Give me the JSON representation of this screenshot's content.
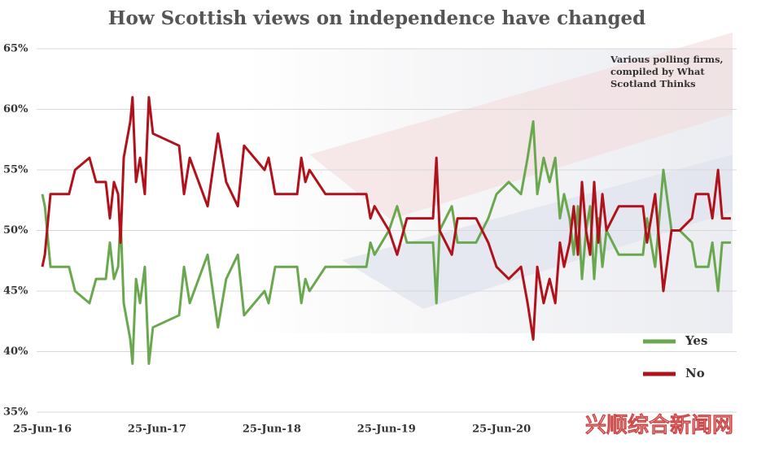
{
  "chart_data": {
    "type": "line",
    "title": "How Scottish views on independence have changed",
    "annotation": "Various polling firms, compiled by What Scotland Thinks",
    "watermark": "兴顺综合新闻网",
    "x": [
      "2016-06-25",
      "2016-07-03",
      "2016-07-21",
      "2016-09-18",
      "2016-10-07",
      "2016-11-22",
      "2016-12-13",
      "2017-01-13",
      "2017-01-26",
      "2017-02-08",
      "2017-02-21",
      "2017-03-01",
      "2017-03-11",
      "2017-04-01",
      "2017-04-08",
      "2017-04-19",
      "2017-05-02",
      "2017-05-17",
      "2017-05-30",
      "2017-06-12",
      "2017-09-03",
      "2017-09-19",
      "2017-10-07",
      "2017-12-03",
      "2018-01-05",
      "2018-01-31",
      "2018-03-09",
      "2018-03-29",
      "2018-06-02",
      "2018-06-15",
      "2018-07-06",
      "2018-09-14",
      "2018-09-27",
      "2018-10-10",
      "2018-10-23",
      "2018-12-13",
      "2019-04-22",
      "2019-05-05",
      "2019-05-18",
      "2019-07-03",
      "2019-07-29",
      "2019-08-29",
      "2019-11-20",
      "2019-12-01",
      "2019-12-11",
      "2020-01-19",
      "2020-02-06",
      "2020-04-05",
      "2020-05-14",
      "2020-06-09",
      "2020-07-18",
      "2020-08-26",
      "2020-09-16",
      "2020-10-04",
      "2020-10-17",
      "2020-11-06",
      "2020-11-25",
      "2020-12-13",
      "2020-12-28",
      "2021-01-10",
      "2021-01-28",
      "2021-02-10",
      "2021-02-23",
      "2021-03-08",
      "2021-03-21",
      "2021-04-03",
      "2021-04-16",
      "2021-04-29",
      "2021-05-12",
      "2021-05-25",
      "2021-07-03",
      "2021-09-18",
      "2021-10-01",
      "2021-10-27",
      "2021-11-22",
      "2021-12-18",
      "2022-01-13",
      "2022-02-21",
      "2022-03-06",
      "2022-04-14",
      "2022-04-27",
      "2022-05-15",
      "2022-05-28",
      "2022-06-25"
    ],
    "series": [
      {
        "name": "Yes",
        "color": "#6aa84f",
        "values": [
          53,
          52,
          47,
          47,
          45,
          44,
          46,
          46,
          49,
          46,
          47,
          51,
          44,
          41,
          39,
          46,
          44,
          47,
          39,
          42,
          43,
          47,
          44,
          48,
          42,
          46,
          48,
          43,
          45,
          44,
          47,
          47,
          44,
          46,
          45,
          47,
          47,
          49,
          48,
          50,
          52,
          49,
          49,
          44,
          50,
          52,
          49,
          49,
          51,
          53,
          54,
          53,
          56,
          59,
          53,
          56,
          54,
          56,
          51,
          53,
          51,
          48,
          52,
          46,
          50,
          52,
          46,
          51,
          47,
          50,
          48,
          48,
          51,
          47,
          55,
          50,
          50,
          49,
          47,
          47,
          49,
          45,
          49,
          49
        ]
      },
      {
        "name": "No",
        "color": "#b0121b",
        "values": [
          47,
          48,
          53,
          53,
          55,
          56,
          54,
          54,
          51,
          54,
          53,
          49,
          56,
          59,
          61,
          54,
          56,
          53,
          61,
          58,
          57,
          53,
          56,
          52,
          58,
          54,
          52,
          57,
          55,
          56,
          53,
          53,
          56,
          54,
          55,
          53,
          53,
          51,
          52,
          50,
          48,
          51,
          51,
          56,
          50,
          48,
          51,
          51,
          49,
          47,
          46,
          47,
          44,
          41,
          47,
          44,
          46,
          44,
          49,
          47,
          49,
          52,
          48,
          54,
          50,
          48,
          54,
          49,
          53,
          50,
          52,
          52,
          49,
          53,
          45,
          50,
          50,
          51,
          53,
          53,
          51,
          55,
          51,
          51
        ]
      }
    ],
    "xlim": [
      "2016-06-25",
      "2022-06-25"
    ],
    "xticks": [
      {
        "value": "2016-06-25",
        "label": "25-Jun-16"
      },
      {
        "value": "2017-06-25",
        "label": "25-Jun-17"
      },
      {
        "value": "2018-06-25",
        "label": "25-Jun-18"
      },
      {
        "value": "2019-06-25",
        "label": "25-Jun-19"
      },
      {
        "value": "2020-06-25",
        "label": "25-Jun-20"
      }
    ],
    "ylim": [
      35,
      65
    ],
    "yticks": [
      {
        "value": 35,
        "label": "35%"
      },
      {
        "value": 40,
        "label": "40%"
      },
      {
        "value": 45,
        "label": "45%"
      },
      {
        "value": 50,
        "label": "50%"
      },
      {
        "value": 55,
        "label": "55%"
      },
      {
        "value": 60,
        "label": "60%"
      },
      {
        "value": 65,
        "label": "65%"
      }
    ],
    "grid": true
  }
}
